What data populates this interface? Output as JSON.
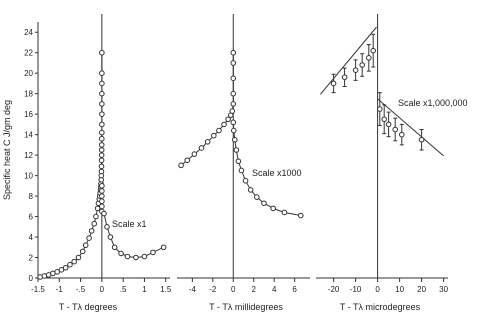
{
  "chart_data": [
    {
      "type": "scatter",
      "ylabel": "Specific heat C  J/gm deg",
      "xlabel": "T - Tλ  degrees",
      "xlim": [
        -1.5,
        1.6
      ],
      "ylim": [
        0,
        25
      ],
      "xticks": [
        "-1.5",
        "-1",
        "-.5",
        "0",
        ".5",
        "1",
        "1.5"
      ],
      "xtick_values": [
        -1.5,
        -1,
        -0.5,
        0,
        0.5,
        1,
        1.5
      ],
      "yticks": [
        "0",
        "2",
        "4",
        "6",
        "8",
        "10",
        "12",
        "14",
        "16",
        "18",
        "20",
        "22",
        "24"
      ],
      "annotation": "Scale x1",
      "series": [
        {
          "x": [
            -1.45,
            -1.35,
            -1.25,
            -1.15,
            -1.05,
            -0.95,
            -0.85,
            -0.75,
            -0.65,
            -0.55,
            -0.45,
            -0.38,
            -0.3,
            -0.24,
            -0.18,
            -0.14,
            -0.1,
            -0.08,
            -0.06,
            -0.05,
            -0.04,
            -0.03,
            -0.025,
            -0.02,
            -0.015,
            -0.012,
            -0.01,
            -0.008,
            -0.006,
            -0.005,
            -0.004,
            -0.003,
            -0.002,
            -0.001,
            0.0,
            0.0,
            0.0,
            0.0,
            0.0,
            0.0,
            0.0,
            0.0,
            0.0,
            0.0,
            0.0,
            0.0,
            0.0
          ],
          "y": [
            0.1,
            0.2,
            0.3,
            0.45,
            0.6,
            0.8,
            1.0,
            1.3,
            1.6,
            2.0,
            2.6,
            3.2,
            3.9,
            4.6,
            5.3,
            6.0,
            6.8,
            7.3,
            7.7,
            8.0,
            8.3,
            8.6,
            8.9,
            9.2,
            9.6,
            10.0,
            10.4,
            10.9,
            11.5,
            12.0,
            12.5,
            13.0,
            13.6,
            14.2,
            15.0,
            16.0,
            17.0,
            18.0,
            19.0,
            20.0,
            22.0,
            7.0,
            7.5,
            8.0,
            8.5,
            9.0,
            6.5
          ]
        },
        {
          "x": [
            0.05,
            0.12,
            0.2,
            0.3,
            0.45,
            0.6,
            0.8,
            1.0,
            1.2,
            1.45
          ],
          "y": [
            6.3,
            5.0,
            4.0,
            3.0,
            2.4,
            2.1,
            2.0,
            2.1,
            2.5,
            3.0
          ]
        }
      ]
    },
    {
      "type": "scatter",
      "xlabel": "T - Tλ  millidegrees",
      "xlim": [
        -5.5,
        7.5
      ],
      "ylim": [
        0,
        25
      ],
      "xticks": [
        "-4",
        "-2",
        "0",
        "2",
        "4",
        "6"
      ],
      "xtick_values": [
        -4,
        -2,
        0,
        2,
        4,
        6
      ],
      "annotation": "Scale x1000",
      "series": [
        {
          "x": [
            -5.1,
            -4.5,
            -3.8,
            -3.1,
            -2.5,
            -1.9,
            -1.4,
            -0.9,
            -0.5,
            -0.25,
            -0.1,
            0.0,
            0.0,
            0.0,
            0.0,
            0.0
          ],
          "y": [
            11.0,
            11.5,
            12.1,
            12.7,
            13.3,
            13.9,
            14.4,
            15.0,
            15.5,
            15.9,
            16.3,
            17.0,
            18.0,
            19.5,
            21.0,
            22.0
          ]
        },
        {
          "x": [
            0.0,
            0.05,
            0.15,
            0.3,
            0.5,
            0.8,
            1.2,
            1.7,
            2.3,
            3.0,
            3.9,
            5.0,
            6.6
          ],
          "y": [
            15.2,
            14.4,
            13.5,
            12.5,
            11.4,
            10.5,
            9.5,
            8.6,
            7.9,
            7.3,
            6.8,
            6.4,
            6.1
          ]
        }
      ]
    },
    {
      "type": "scatter",
      "xlabel": "T - Tλ  microdegrees",
      "xlim": [
        -28,
        32
      ],
      "ylim": [
        0,
        25
      ],
      "xticks": [
        "-20",
        "-10",
        "0",
        "10",
        "20",
        "30"
      ],
      "xtick_values": [
        -20,
        -10,
        0,
        10,
        20,
        30
      ],
      "annotation": "Scale x1,000,000",
      "series": [
        {
          "x": [
            -20,
            -15,
            -10,
            -7,
            -4,
            -2
          ],
          "y": [
            19.0,
            19.6,
            20.3,
            20.8,
            21.5,
            22.2
          ],
          "yerr": [
            0.9,
            0.9,
            1.0,
            1.1,
            1.3,
            1.6
          ]
        },
        {
          "x": [
            1,
            3,
            5,
            8,
            11,
            20
          ],
          "y": [
            16.5,
            15.5,
            15.0,
            14.5,
            14.0,
            13.5
          ],
          "yerr": [
            1.6,
            1.4,
            1.2,
            1.1,
            1.0,
            1.0
          ]
        }
      ]
    }
  ]
}
